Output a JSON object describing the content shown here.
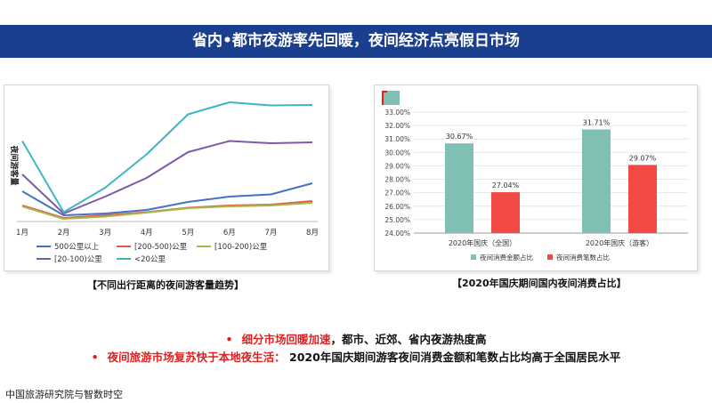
{
  "banner": {
    "title": "省内•都市夜游率先回暖，夜间经济点亮假日市场"
  },
  "captions": {
    "left": "【不同出行距离的夜间游客量趋势】",
    "right": "【2020年国庆期间国内夜间消费占比】"
  },
  "bullets": [
    {
      "highlight": "细分市场回暖加速",
      "rest": "，都市、近郊、省内夜游热度高"
    },
    {
      "highlight": "夜间旅游市场复苏快于本地夜生活：",
      "rest": " 2020年国庆期间游客夜间消费金额和笔数占比均高于全国居民水平"
    }
  ],
  "footer": "中国旅游研究院与智数时空",
  "chart_data": [
    {
      "type": "line",
      "ylabel": "夜间游客量",
      "categories": [
        "1月",
        "2月",
        "3月",
        "4月",
        "5月",
        "6月",
        "7月",
        "8月"
      ],
      "series": [
        {
          "name": "500公里以上",
          "color": "#4472c4",
          "values": [
            0.62,
            0.08,
            0.12,
            0.2,
            0.38,
            0.5,
            0.55,
            0.8
          ]
        },
        {
          "name": "[200-500)公里",
          "color": "#e05a4e",
          "values": [
            0.3,
            0.02,
            0.08,
            0.15,
            0.25,
            0.3,
            0.32,
            0.4
          ]
        },
        {
          "name": "[100-200)公里",
          "color": "#a5b84a",
          "values": [
            0.28,
            0.0,
            0.05,
            0.14,
            0.24,
            0.28,
            0.3,
            0.36
          ]
        },
        {
          "name": "[20-100)公里",
          "color": "#7e5aa6",
          "values": [
            1.0,
            0.12,
            0.5,
            0.92,
            1.5,
            1.75,
            1.7,
            1.72
          ]
        },
        {
          "name": "<20公里",
          "color": "#3fb5c4",
          "values": [
            1.75,
            0.15,
            0.7,
            1.45,
            2.35,
            2.62,
            2.55,
            2.56
          ]
        }
      ]
    },
    {
      "type": "bar",
      "categories": [
        "2020年国庆（全国）",
        "2020年国庆（游客）"
      ],
      "series": [
        {
          "name": "夜间消费金额占比",
          "color": "#7fbfb4",
          "values": [
            30.67,
            31.71
          ],
          "labels": [
            "30.67%",
            "31.71%"
          ]
        },
        {
          "name": "夜间消费笔数占比",
          "color": "#f24a44",
          "values": [
            27.04,
            29.07
          ],
          "labels": [
            "27.04%",
            "29.07%"
          ]
        }
      ],
      "ylim": [
        24,
        33
      ],
      "yticks": [
        "24.00%",
        "25.00%",
        "26.00%",
        "27.00%",
        "28.00%",
        "29.00%",
        "30.00%",
        "31.00%",
        "32.00%",
        "33.00%"
      ]
    }
  ]
}
